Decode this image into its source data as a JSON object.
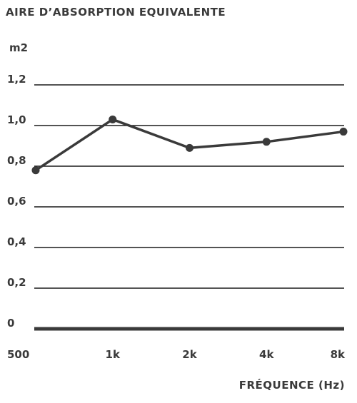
{
  "chart_data": {
    "type": "line",
    "title": "AIRE D’ABSORPTION EQUIVALENTE",
    "ylabel": "m2",
    "xlabel": "FRÉQUENCE (Hz)",
    "categories": [
      "500",
      "1k",
      "2k",
      "4k",
      "8k"
    ],
    "series": [
      {
        "values": [
          0.78,
          1.03,
          0.89,
          0.92,
          0.97
        ]
      }
    ],
    "ylim": [
      0,
      1.2
    ],
    "yticks": [
      0,
      0.2,
      0.4,
      0.6,
      0.8,
      1.0,
      1.2
    ],
    "ytick_labels": [
      "0",
      "0,2",
      "0,4",
      "0,6",
      "0,8",
      "1,0",
      "1,2"
    ],
    "grid": true,
    "colors": {
      "line": "#3a3a3a",
      "grid": "#1a1a1a"
    }
  }
}
